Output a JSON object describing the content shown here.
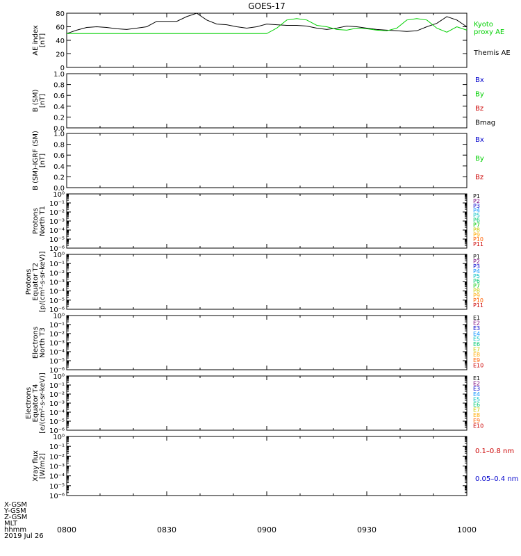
{
  "title": "GOES-17",
  "date_label": "2019 Jul 26",
  "footer_rows": [
    "X-GSM",
    "Y-GSM",
    "Z-GSM",
    "MLT",
    "hhmm"
  ],
  "time_ticks": [
    "0800",
    "0830",
    "0900",
    "0930",
    "1000"
  ],
  "colors": {
    "black": "#000000",
    "green": "#00d000",
    "blue": "#0000cc",
    "red": "#cc0000",
    "ramp": [
      "#000000",
      "#7a007a",
      "#0000cc",
      "#0090ff",
      "#00c0c0",
      "#00c870",
      "#00c800",
      "#c8c800",
      "#ffaa00",
      "#ff6000",
      "#cc0000"
    ]
  },
  "panels": [
    {
      "id": "ae",
      "ylabel_lines": [
        "AE index",
        "[nT]"
      ],
      "yticks": [
        "80",
        "60",
        "40",
        "20",
        "0"
      ],
      "legend": [
        {
          "text": "Kyoto",
          "color": "#00d000"
        },
        {
          "text": "proxy AE",
          "color": "#00d000"
        },
        {
          "text": "Themis AE",
          "color": "#000000"
        }
      ]
    },
    {
      "id": "b_sm",
      "ylabel_lines": [
        "B (SM)",
        "[nT]"
      ],
      "yticks": [
        "1.0",
        "0.8",
        "0.6",
        "0.4",
        "0.2",
        "0.0"
      ],
      "legend": [
        {
          "text": "Bx",
          "color": "#0000cc"
        },
        {
          "text": "By",
          "color": "#00d000"
        },
        {
          "text": "Bz",
          "color": "#cc0000"
        },
        {
          "text": "Bmag",
          "color": "#000000"
        }
      ]
    },
    {
      "id": "b_igrf",
      "ylabel_lines": [
        "B (SM)-IGRF (SM)",
        "[nT]"
      ],
      "yticks": [
        "1.0",
        "0.8",
        "0.6",
        "0.4",
        "0.2",
        "0.0"
      ],
      "legend": [
        {
          "text": "Bx",
          "color": "#0000cc"
        },
        {
          "text": "By",
          "color": "#00d000"
        },
        {
          "text": "Bz",
          "color": "#cc0000"
        }
      ]
    },
    {
      "id": "prot_t1",
      "ylabel_lines": [
        "Protons",
        "North T1"
      ],
      "yticks": [
        "10⁰",
        "10⁻¹",
        "10⁻²",
        "10⁻³",
        "10⁻⁴",
        "10⁻⁵",
        "10⁻⁶"
      ],
      "legend": [
        {
          "text": "P1",
          "color": "#000000"
        },
        {
          "text": "P2",
          "color": "#7a007a"
        },
        {
          "text": "P3",
          "color": "#0000cc"
        },
        {
          "text": "P4",
          "color": "#0090ff"
        },
        {
          "text": "P5",
          "color": "#00c0c0"
        },
        {
          "text": "P6",
          "color": "#00c870"
        },
        {
          "text": "P7",
          "color": "#00c800"
        },
        {
          "text": "P8",
          "color": "#c8c800"
        },
        {
          "text": "P9",
          "color": "#ffaa00"
        },
        {
          "text": "P10",
          "color": "#ff6000"
        },
        {
          "text": "P11",
          "color": "#cc0000"
        }
      ]
    },
    {
      "id": "prot_t2",
      "ylabel_lines": [
        "Protons",
        "Equator T2",
        "[p/(cm²-s-sr-keV)]"
      ],
      "yticks": [
        "10⁰",
        "10⁻¹",
        "10⁻²",
        "10⁻³",
        "10⁻⁴",
        "10⁻⁵",
        "10⁻⁶"
      ],
      "legend": [
        {
          "text": "P1",
          "color": "#000000"
        },
        {
          "text": "P2",
          "color": "#7a007a"
        },
        {
          "text": "P3",
          "color": "#0000cc"
        },
        {
          "text": "P4",
          "color": "#0090ff"
        },
        {
          "text": "P5",
          "color": "#00c0c0"
        },
        {
          "text": "P6",
          "color": "#00c870"
        },
        {
          "text": "P7",
          "color": "#00c800"
        },
        {
          "text": "P8",
          "color": "#c8c800"
        },
        {
          "text": "P9",
          "color": "#ffaa00"
        },
        {
          "text": "P10",
          "color": "#ff6000"
        },
        {
          "text": "P11",
          "color": "#cc0000"
        }
      ]
    },
    {
      "id": "elec_t3",
      "ylabel_lines": [
        "Electrons",
        "North T3"
      ],
      "yticks": [
        "10⁰",
        "10⁻¹",
        "10⁻²",
        "10⁻³",
        "10⁻⁴",
        "10⁻⁵",
        "10⁻⁶"
      ],
      "legend": [
        {
          "text": "E1",
          "color": "#000000"
        },
        {
          "text": "E2",
          "color": "#7a007a"
        },
        {
          "text": "E3",
          "color": "#0000cc"
        },
        {
          "text": "E4",
          "color": "#0090ff"
        },
        {
          "text": "E5",
          "color": "#00c0c0"
        },
        {
          "text": "E6",
          "color": "#00c870"
        },
        {
          "text": "E7",
          "color": "#c8c800"
        },
        {
          "text": "E8",
          "color": "#ffaa00"
        },
        {
          "text": "E9",
          "color": "#ff6000"
        },
        {
          "text": "E10",
          "color": "#cc0000"
        }
      ]
    },
    {
      "id": "elec_t4",
      "ylabel_lines": [
        "Electrons",
        "Equator T4",
        "[e/(cm²-s-sr-keV)]"
      ],
      "yticks": [
        "10⁰",
        "10⁻¹",
        "10⁻²",
        "10⁻³",
        "10⁻⁴",
        "10⁻⁵",
        "10⁻⁶"
      ],
      "legend": [
        {
          "text": "E1",
          "color": "#000000"
        },
        {
          "text": "E2",
          "color": "#7a007a"
        },
        {
          "text": "E3",
          "color": "#0000cc"
        },
        {
          "text": "E4",
          "color": "#0090ff"
        },
        {
          "text": "E5",
          "color": "#00c0c0"
        },
        {
          "text": "E6",
          "color": "#00c870"
        },
        {
          "text": "E7",
          "color": "#c8c800"
        },
        {
          "text": "E8",
          "color": "#ffaa00"
        },
        {
          "text": "E9",
          "color": "#ff6000"
        },
        {
          "text": "E10",
          "color": "#cc0000"
        }
      ]
    },
    {
      "id": "xray",
      "ylabel_lines": [
        "Xray flux",
        "[W/m2]"
      ],
      "yticks": [
        "10⁰",
        "10⁻¹",
        "10⁻²",
        "10⁻³",
        "10⁻⁴",
        "10⁻⁵",
        "10⁻⁶"
      ],
      "legend": [
        {
          "text": "0.1–0.8 nm",
          "color": "#cc0000"
        },
        {
          "text": "0.05–0.4 nm",
          "color": "#0000cc"
        }
      ]
    }
  ],
  "chart_data": {
    "type": "line",
    "title": "GOES-17",
    "xlabel": "",
    "ylabel": "AE index [nT]",
    "x_unit": "UT hhmm",
    "xlim": [
      "0800",
      "1000"
    ],
    "ylim": [
      0,
      85
    ],
    "grid": false,
    "x_minutes": [
      0,
      3,
      6,
      9,
      12,
      15,
      18,
      21,
      24,
      27,
      30,
      33,
      36,
      39,
      42,
      45,
      48,
      51,
      54,
      57,
      60,
      63,
      66,
      69,
      72,
      75,
      78,
      81,
      84,
      87,
      90,
      93,
      96,
      99,
      102,
      105,
      108,
      111,
      114,
      117,
      120
    ],
    "series": [
      {
        "name": "Themis AE",
        "color": "#000000",
        "values": [
          50,
          55,
          59,
          60,
          59,
          57,
          56,
          58,
          60,
          68,
          68,
          68,
          75,
          83,
          70,
          64,
          63,
          60,
          58,
          60,
          64,
          63,
          62,
          62,
          61,
          58,
          56,
          58,
          61,
          60,
          58,
          56,
          55,
          54,
          53,
          54,
          60,
          65,
          75,
          70,
          60
        ]
      },
      {
        "name": "Kyoto proxy AE",
        "color": "#00d000",
        "values": [
          50,
          50,
          50,
          50,
          50,
          50,
          50,
          50,
          50,
          50,
          50,
          50,
          50,
          50,
          50,
          50,
          50,
          50,
          50,
          50,
          50,
          58,
          70,
          72,
          70,
          62,
          60,
          56,
          55,
          58,
          57,
          55,
          54,
          58,
          70,
          72,
          70,
          58,
          52,
          60,
          55
        ]
      }
    ],
    "log_panels_ylim": [
      1e-06,
      1
    ],
    "log_panels_note": "Proton, electron and X-ray panels contain no plotted data"
  }
}
